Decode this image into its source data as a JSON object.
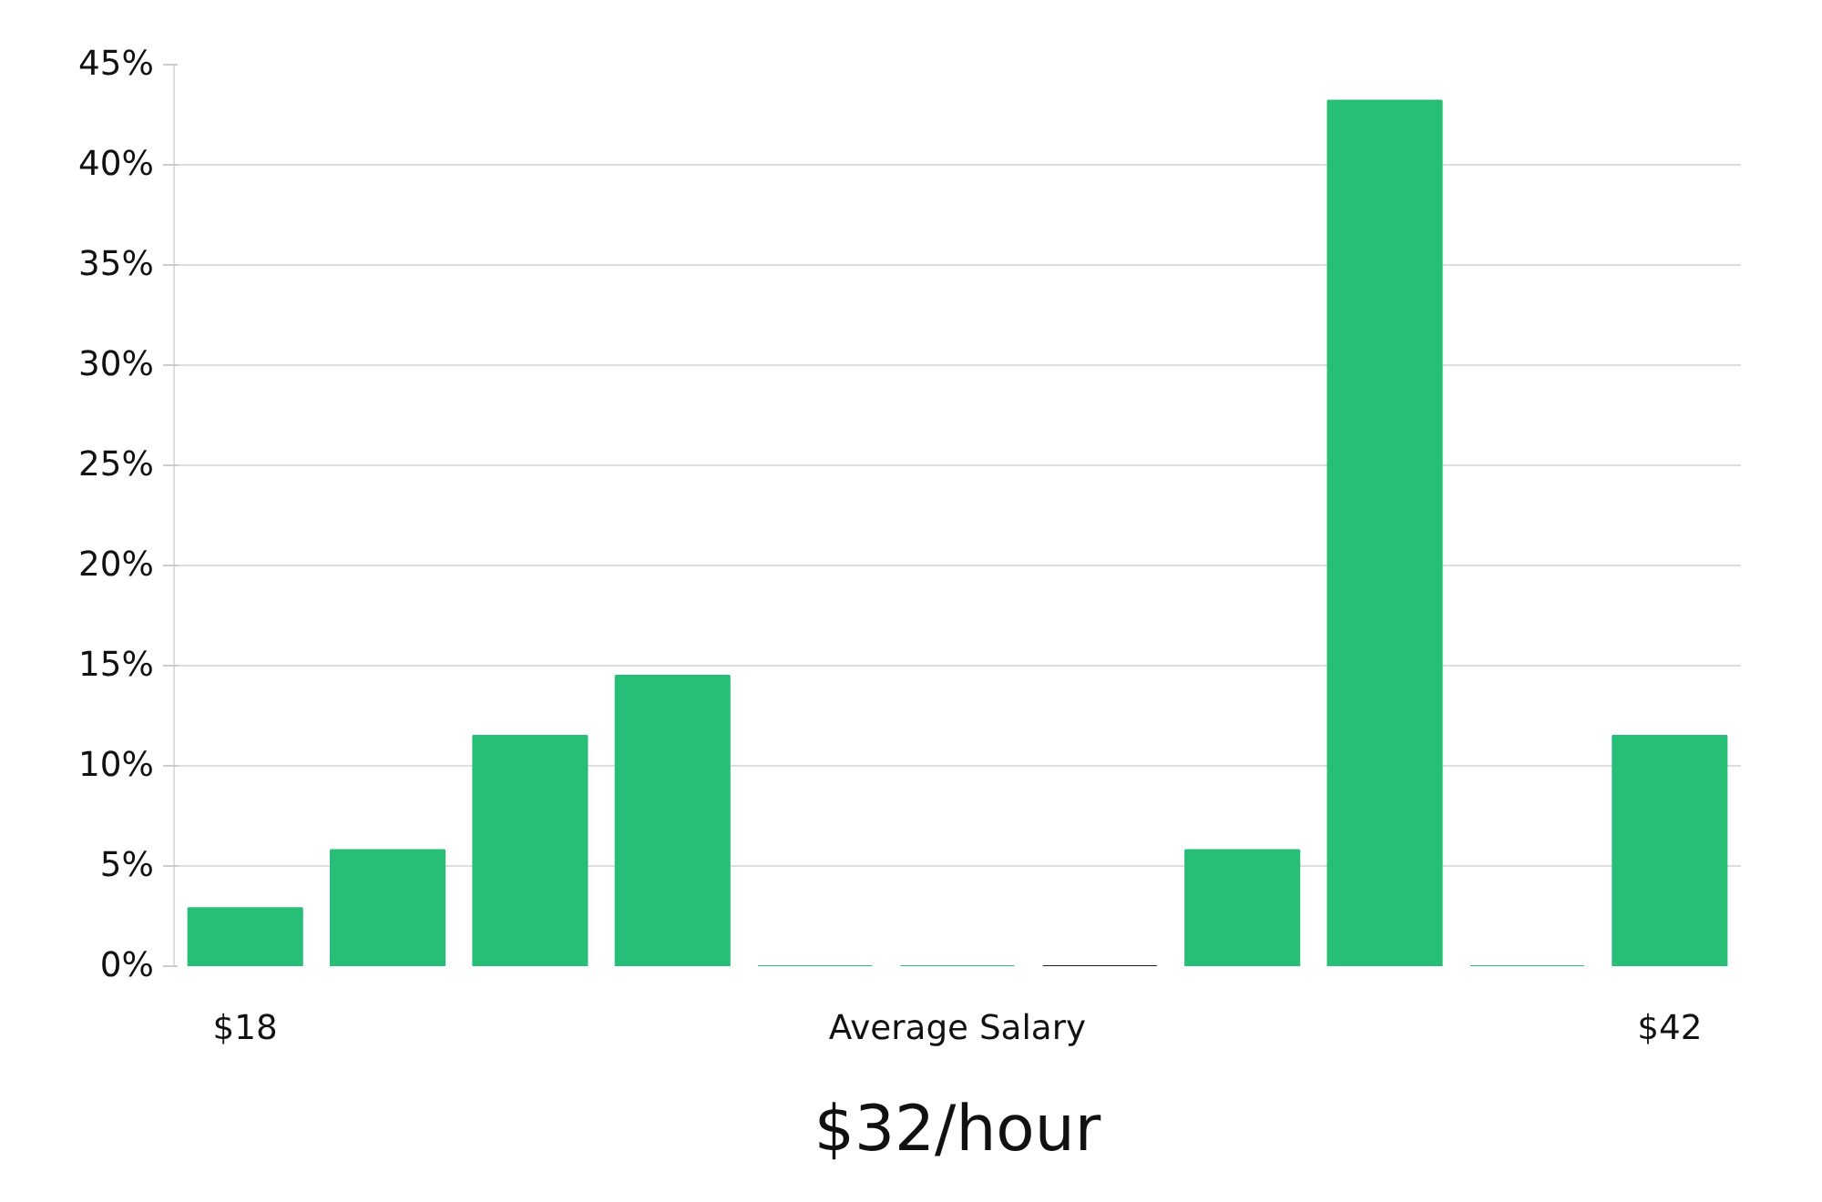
{
  "chart_data": {
    "type": "bar",
    "categories": [
      "$18",
      null,
      null,
      null,
      null,
      "Average Salary",
      null,
      null,
      null,
      null,
      "$42"
    ],
    "values": [
      2.9,
      5.8,
      11.5,
      14.5,
      0,
      0,
      0,
      5.8,
      43.2,
      0,
      11.5
    ],
    "colors": [
      "#27bf77",
      "#27bf77",
      "#27bf77",
      "#27bf77",
      "#27bf77",
      "#27bf77",
      "#1a1a1a",
      "#27bf77",
      "#27bf77",
      "#27bf77",
      "#27bf77"
    ],
    "ylim": [
      0,
      45
    ],
    "yticks": [
      {
        "value": 0,
        "label": "0%"
      },
      {
        "value": 5,
        "label": "5%"
      },
      {
        "value": 10,
        "label": "10%"
      },
      {
        "value": 15,
        "label": "15%"
      },
      {
        "value": 20,
        "label": "20%"
      },
      {
        "value": 25,
        "label": "25%"
      },
      {
        "value": 30,
        "label": "30%"
      },
      {
        "value": 35,
        "label": "35%"
      },
      {
        "value": 40,
        "label": "40%"
      },
      {
        "value": 45,
        "label": "45%"
      }
    ],
    "grid": "y",
    "annotations": [
      "$32/hour"
    ]
  }
}
